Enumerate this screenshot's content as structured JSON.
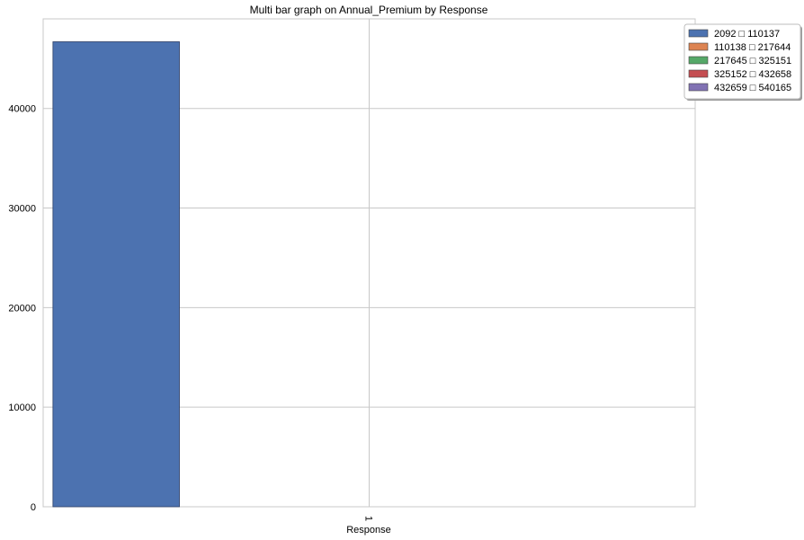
{
  "chart_data": {
    "type": "bar",
    "title": "Multi bar graph on Annual_Premium by Response",
    "xlabel": "Response",
    "ylabel": "",
    "categories": [
      "1"
    ],
    "ylim": [
      0,
      49000
    ],
    "yticks": [
      0,
      10000,
      20000,
      30000,
      40000
    ],
    "grid": true,
    "legend_position": "top-right",
    "series": [
      {
        "name": "2092 □ 110137",
        "color": "#4c72b0",
        "values": [
          46700
        ]
      },
      {
        "name": "110138 □ 217644",
        "color": "#dd8452",
        "values": [
          0
        ]
      },
      {
        "name": "217645 □ 325151",
        "color": "#55a868",
        "values": [
          0
        ]
      },
      {
        "name": "325152 □ 432658",
        "color": "#c44e52",
        "values": [
          0
        ]
      },
      {
        "name": "432659 □ 540165",
        "color": "#8172b3",
        "values": [
          0
        ]
      }
    ]
  }
}
